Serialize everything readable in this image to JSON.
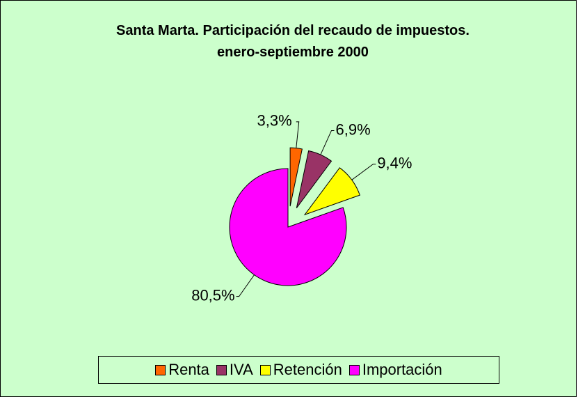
{
  "chart_data": {
    "type": "pie",
    "title": "Santa Marta. Participación del recaudo de impuestos. enero-septiembre 2000",
    "categories": [
      "Renta",
      "IVA",
      "Retención",
      "Importación"
    ],
    "values": [
      3.3,
      6.9,
      9.4,
      80.5
    ],
    "value_labels": [
      "3,3%",
      "6,9%",
      "9,4%",
      "80,5%"
    ],
    "colors": [
      "#ff6600",
      "#993366",
      "#ffff00",
      "#ff00ff"
    ],
    "explode": [
      true,
      true,
      true,
      false
    ],
    "legend": "bottom"
  }
}
